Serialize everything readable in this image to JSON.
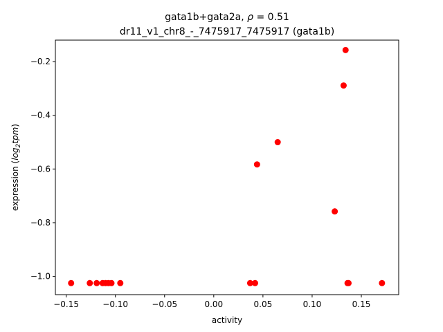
{
  "chart_data": {
    "type": "scatter",
    "title_line1_prefix": "gata1b+gata2a, ",
    "title_rho_symbol": "ρ",
    "title_rho_value": " = 0.51",
    "title_line2": "dr11_v1_chr8_-_7475917_7475917 (gata1b)",
    "xlabel": "activity",
    "ylabel_prefix": "expression (",
    "ylabel_log": "log",
    "ylabel_sub": "2",
    "ylabel_tpm": "tpm",
    "ylabel_suffix": ")",
    "xlim": [
      -0.161,
      0.188
    ],
    "ylim": [
      -1.068,
      -0.12
    ],
    "xticks": [
      -0.15,
      -0.1,
      -0.05,
      0.0,
      0.05,
      0.1,
      0.15
    ],
    "xtick_labels": [
      "−0.15",
      "−0.10",
      "−0.05",
      "0.00",
      "0.05",
      "0.10",
      "0.15"
    ],
    "yticks": [
      -1.0,
      -0.8,
      -0.6,
      -0.4,
      -0.2
    ],
    "ytick_labels": [
      "−1.0",
      "−0.8",
      "−0.6",
      "−0.4",
      "−0.2"
    ],
    "grid": false,
    "marker_color": "#ff0000",
    "points": [
      {
        "x": -0.145,
        "y": -1.025
      },
      {
        "x": -0.126,
        "y": -1.025
      },
      {
        "x": -0.119,
        "y": -1.025
      },
      {
        "x": -0.113,
        "y": -1.025
      },
      {
        "x": -0.11,
        "y": -1.025
      },
      {
        "x": -0.107,
        "y": -1.025
      },
      {
        "x": -0.104,
        "y": -1.025
      },
      {
        "x": -0.095,
        "y": -1.025
      },
      {
        "x": 0.037,
        "y": -1.025
      },
      {
        "x": 0.042,
        "y": -1.025
      },
      {
        "x": 0.044,
        "y": -0.583
      },
      {
        "x": 0.065,
        "y": -0.5
      },
      {
        "x": 0.123,
        "y": -0.758
      },
      {
        "x": 0.132,
        "y": -0.289
      },
      {
        "x": 0.134,
        "y": -0.157
      },
      {
        "x": 0.136,
        "y": -1.025
      },
      {
        "x": 0.137,
        "y": -1.025
      },
      {
        "x": 0.171,
        "y": -1.025
      }
    ]
  }
}
